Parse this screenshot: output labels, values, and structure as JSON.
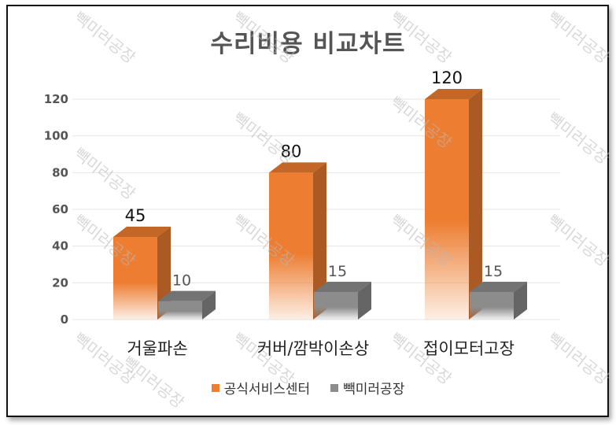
{
  "chart_data": {
    "type": "bar",
    "title": "수리비용 비교차트",
    "categories": [
      "거울파손",
      "커버/깜박이손상",
      "접이모터고장"
    ],
    "series": [
      {
        "name": "공식서비스센터",
        "values": [
          45,
          80,
          120
        ],
        "color": "#ED7D31"
      },
      {
        "name": "빽미러공장",
        "values": [
          10,
          15,
          15
        ],
        "color": "#8C8C8C"
      }
    ],
    "ylim": [
      0,
      120
    ],
    "yticks": [
      0,
      20,
      40,
      60,
      80,
      100,
      120
    ],
    "grid": true,
    "legend": "bottom",
    "style": "3d-column"
  },
  "watermark": "빽미러공장"
}
